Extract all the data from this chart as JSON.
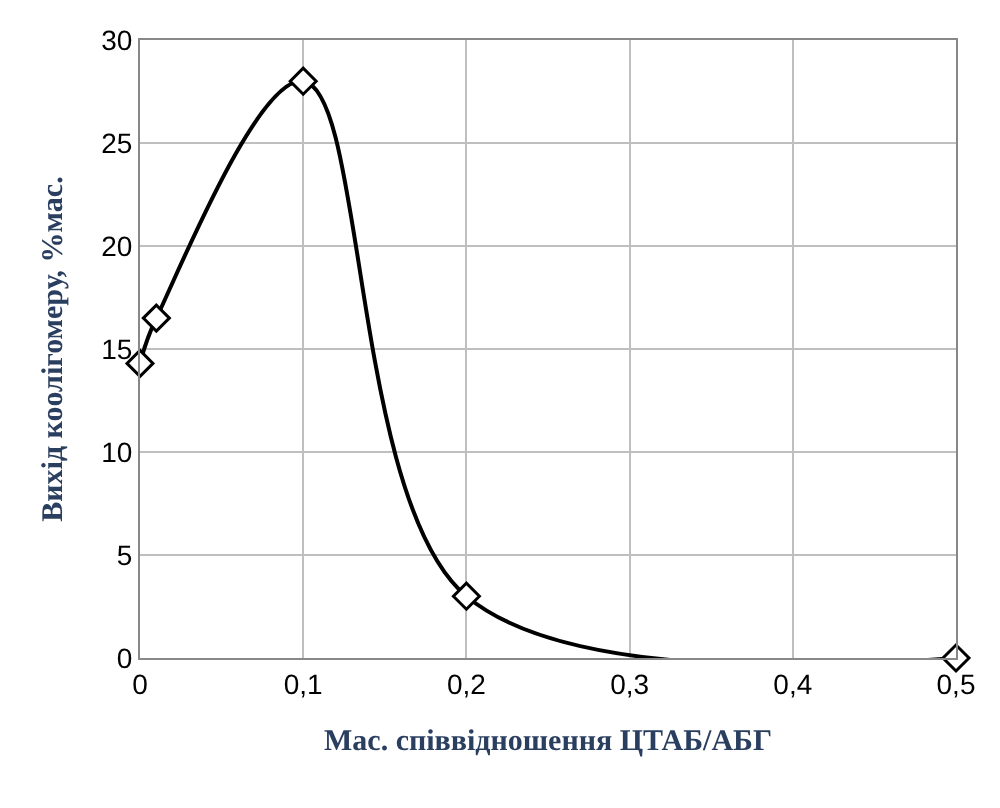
{
  "chart_data": {
    "type": "line",
    "xlabel": "Мас. співвідношення ЦТАБ/АБГ",
    "ylabel": "Вихід коолігомеру, %мас.",
    "x": [
      0,
      0.01,
      0.1,
      0.2,
      0.5
    ],
    "series": [
      {
        "color": "#000000",
        "values": [
          14.3,
          16.5,
          28,
          3,
          0
        ]
      }
    ],
    "xlim": [
      0,
      0.5
    ],
    "xticks": [
      0,
      {
        "value": 0.1,
        "label": "0,1"
      },
      {
        "value": 0.2,
        "label": "0,2"
      },
      {
        "value": 0.3,
        "label": "0,3"
      },
      {
        "value": 0.4,
        "label": "0,4"
      },
      {
        "value": 0.5,
        "label": "0,5"
      }
    ],
    "ylim": [
      0,
      30
    ],
    "yticks": [
      0,
      5,
      10,
      15,
      20,
      25,
      30
    ],
    "grid": true,
    "legend": false,
    "marker": "diamond",
    "line_style": "solid"
  }
}
